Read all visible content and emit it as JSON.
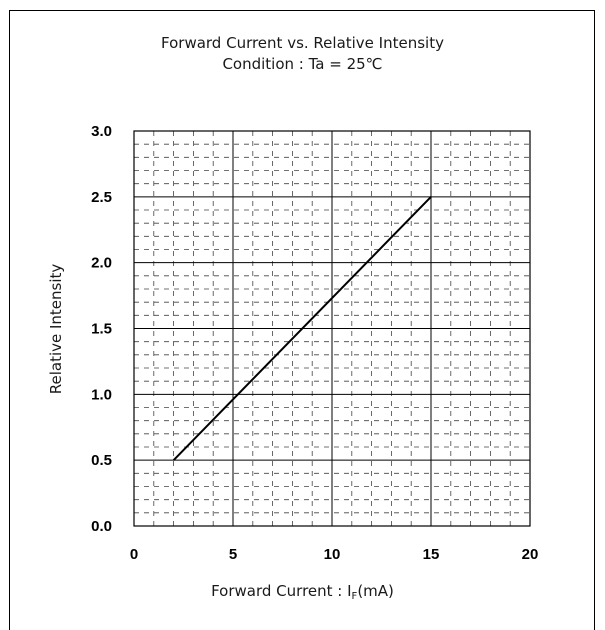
{
  "chart_data": {
    "type": "line",
    "title": "Forward Current vs. Relative Intensity",
    "subtitle": "Condition : Ta = 25℃",
    "xlabel_main": "Forward Current : I",
    "xlabel_sub": "F",
    "xlabel_unit": "(mA)",
    "ylabel": "Relative Intensity",
    "xlim": [
      0,
      20
    ],
    "ylim": [
      0,
      3.0
    ],
    "x_ticks": [
      "0",
      "5",
      "10",
      "15",
      "20"
    ],
    "y_ticks": [
      "0.0",
      "0.5",
      "1.0",
      "1.5",
      "2.0",
      "2.5",
      "3.0"
    ],
    "grid": true,
    "series": [
      {
        "x": [
          2,
          15
        ],
        "y": [
          0.5,
          2.5
        ]
      }
    ]
  }
}
